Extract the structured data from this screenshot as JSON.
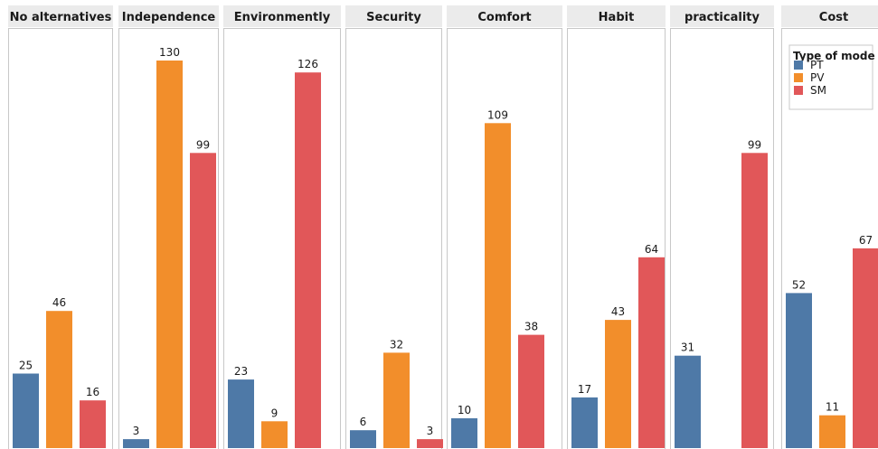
{
  "chart_data": {
    "type": "bar",
    "layout": "faceted",
    "title": "",
    "xlabel": "",
    "ylabel": "",
    "ylim": [
      0,
      135
    ],
    "grid": false,
    "categories": [
      "No alternatives",
      "Independence",
      "Environmently",
      "Security",
      "Comfort",
      "Habit",
      "practicality",
      "Cost"
    ],
    "legend": {
      "title": "Type of mode",
      "placement": "top-right"
    },
    "series": [
      {
        "name": "PT",
        "color": "#4e79a7",
        "values": [
          25,
          3,
          23,
          6,
          10,
          17,
          31,
          52
        ]
      },
      {
        "name": "PV",
        "color": "#f28e2b",
        "values": [
          46,
          130,
          9,
          32,
          109,
          43,
          null,
          11
        ]
      },
      {
        "name": "SM",
        "color": "#e15759",
        "values": [
          16,
          99,
          126,
          3,
          38,
          64,
          99,
          67
        ]
      }
    ]
  }
}
